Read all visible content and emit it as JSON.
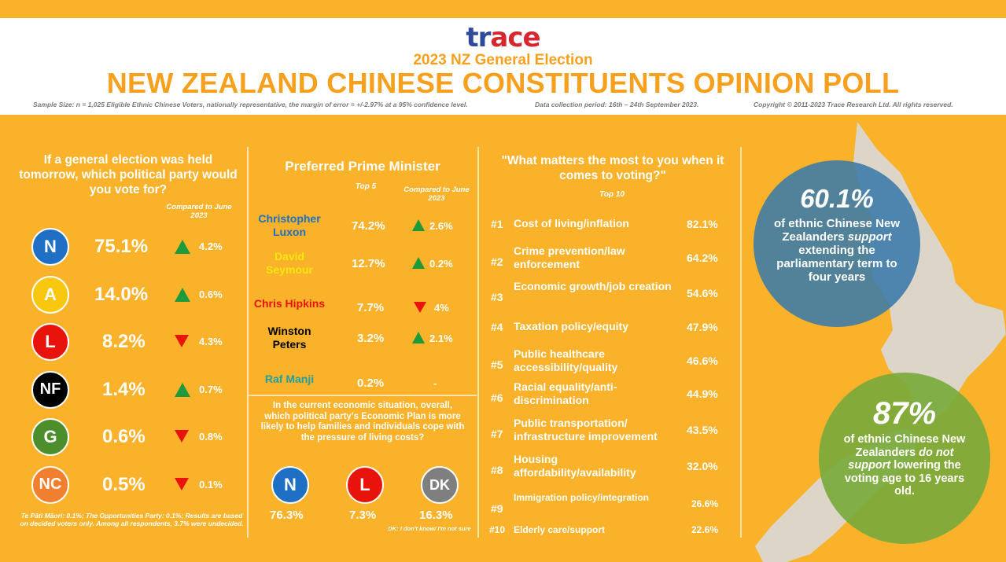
{
  "header": {
    "logo_part1": "tr",
    "logo_part2": "ace",
    "subtitle": "2023 NZ General Election",
    "title": "NEW ZEALAND CHINESE CONSTITUENTS OPINION POLL",
    "sample_size": "Sample Size: n = 1,025 Eligible Ethnic Chinese Voters, nationally representative, the margin of error = +/-2.97% at a 95% confidence level.",
    "collection_period": "Data collection period: 16th – 24th September 2023.",
    "copyright": "Copyright © 2011-2023 Trace Research Ltd. All rights reserved."
  },
  "colors": {
    "background": "#F9B22A",
    "national": "#1F6FC4",
    "act": "#F9C80E",
    "labour": "#E8140C",
    "nz_first": "#000000",
    "green": "#4C8E2B",
    "new_conservatives": "#F08030",
    "dont_know": "#7F7F7F",
    "up": "#1E9A3C",
    "down": "#E8140C"
  },
  "party_vote": {
    "question": "If a general election was held tomorrow, which political party would you vote for?",
    "compared_label": "Compared to June 2023",
    "parties": [
      {
        "abbr": "N",
        "pct": "75.1%",
        "direction": "up",
        "change": "4.2%",
        "color": "#1F6FC4"
      },
      {
        "abbr": "A",
        "pct": "14.0%",
        "direction": "up",
        "change": "0.6%",
        "color": "#F9C80E"
      },
      {
        "abbr": "L",
        "pct": "8.2%",
        "direction": "down",
        "change": "4.3%",
        "color": "#E8140C"
      },
      {
        "abbr": "NF",
        "pct": "1.4%",
        "direction": "up",
        "change": "0.7%",
        "color": "#000000"
      },
      {
        "abbr": "G",
        "pct": "0.6%",
        "direction": "down",
        "change": "0.8%",
        "color": "#4C8E2B"
      },
      {
        "abbr": "NC",
        "pct": "0.5%",
        "direction": "down",
        "change": "0.1%",
        "color": "#F08030"
      }
    ],
    "footnote": "Te Pāti Māori: 0.1%; The Opportunities Party: 0.1%; Results are based on decided voters only. Among all respondents, 3.7% were undecided."
  },
  "preferred_pm": {
    "title": "Preferred Prime Minister",
    "top_label": "Top 5",
    "compared_label": "Compared to June 2023",
    "candidates": [
      {
        "name": "Christopher Luxon",
        "pct": "74.2%",
        "direction": "up",
        "change": "2.6%",
        "color": "#1F6FC4"
      },
      {
        "name": "David Seymour",
        "pct": "12.7%",
        "direction": "up",
        "change": "0.2%",
        "color": "#F9E50E"
      },
      {
        "name": "Chris Hipkins",
        "pct": "7.7%",
        "direction": "down",
        "change": "4%",
        "color": "#E8140C"
      },
      {
        "name": "Winston Peters",
        "pct": "3.2%",
        "direction": "up",
        "change": "2.1%",
        "color": "#000000"
      },
      {
        "name": "Raf Manji",
        "pct": "0.2%",
        "direction": "none",
        "change": "-",
        "color": "#1FA0A0"
      }
    ]
  },
  "economic_plan": {
    "question": "In the current economic situation, overall, which political party's Economic Plan is more likely to help families and individuals cope with the pressure of living costs?",
    "options": [
      {
        "abbr": "N",
        "pct": "76.3%",
        "color": "#1F6FC4"
      },
      {
        "abbr": "L",
        "pct": "7.3%",
        "color": "#E8140C"
      },
      {
        "abbr": "DK",
        "pct": "16.3%",
        "color": "#7F7F7F"
      }
    ],
    "footnote": "DK: I don't know/ I'm not sure"
  },
  "issues": {
    "question": "\"What matters the most to you when it comes to voting?\"",
    "top_label": "Top 10",
    "items": [
      {
        "rank": "#1",
        "name": "Cost of living/inflation",
        "pct": "82.1%"
      },
      {
        "rank": "#2",
        "name": "Crime prevention/law enforcement",
        "pct": "64.2%"
      },
      {
        "rank": "#3",
        "name": "Economic growth/job creation",
        "pct": "54.6%"
      },
      {
        "rank": "#4",
        "name": "Taxation policy/equity",
        "pct": "47.9%"
      },
      {
        "rank": "#5",
        "name": "Public healthcare accessibility/quality",
        "pct": "46.6%"
      },
      {
        "rank": "#6",
        "name": "Racial equality/anti-discrimination",
        "pct": "44.9%"
      },
      {
        "rank": "#7",
        "name": "Public transportation/ infrastructure improvement",
        "pct": "43.5%"
      },
      {
        "rank": "#8",
        "name": "Housing affordability/availability",
        "pct": "32.0%"
      },
      {
        "rank": "#9",
        "name": "Immigration policy/integration",
        "pct": "26.6%"
      },
      {
        "rank": "#10",
        "name": "Elderly care/support",
        "pct": "22.6%"
      }
    ]
  },
  "term_stat": {
    "value": "60.1%",
    "line1": "of ethnic Chinese New Zealanders",
    "emph": "support",
    "line2": "extending the parliamentary term to four years"
  },
  "voting_age_stat": {
    "value": "87%",
    "line1": "of ethnic Chinese New Zealanders",
    "emph": "do not support",
    "line2": "lowering the voting age to 16 years old."
  }
}
